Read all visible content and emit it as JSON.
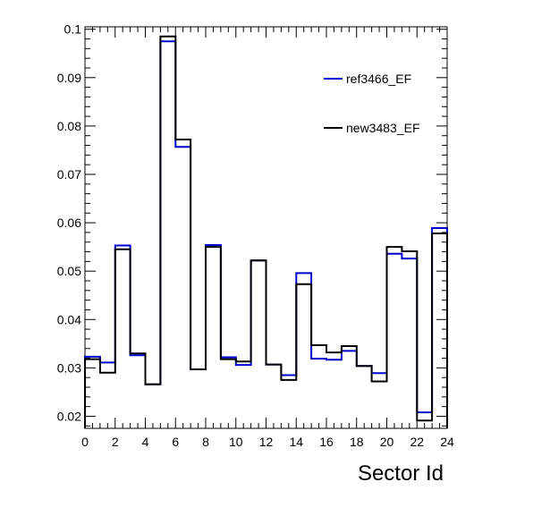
{
  "chart_data": {
    "type": "step-histogram",
    "title": "",
    "xlabel": "Sector Id",
    "ylabel": "",
    "xlim": [
      0,
      24
    ],
    "ylim": [
      0.0175,
      0.1005
    ],
    "grid": false,
    "legend_position": "top-right",
    "x_ticks": [
      0,
      2,
      4,
      6,
      8,
      10,
      12,
      14,
      16,
      18,
      20,
      22,
      24
    ],
    "y_ticks": [
      0.02,
      0.03,
      0.04,
      0.05,
      0.06,
      0.07,
      0.08,
      0.09,
      0.1
    ],
    "y_tick_labels": [
      "0.02",
      "0.03",
      "0.04",
      "0.05",
      "0.06",
      "0.07",
      "0.08",
      "0.09",
      "0.1"
    ],
    "bin_edges": [
      0,
      1,
      2,
      3,
      4,
      5,
      6,
      7,
      8,
      9,
      10,
      11,
      12,
      13,
      14,
      15,
      16,
      17,
      18,
      19,
      20,
      21,
      22,
      23,
      24
    ],
    "series": [
      {
        "name": "ref3466_EF",
        "color": "#0000cc",
        "values": [
          0.0323,
          0.0311,
          0.0553,
          0.0326,
          0.0266,
          0.0975,
          0.0757,
          0.0297,
          0.0554,
          0.0322,
          0.0306,
          0.0522,
          0.0307,
          0.0285,
          0.0496,
          0.0319,
          0.0317,
          0.0335,
          0.0304,
          0.0289,
          0.0536,
          0.0526,
          0.0208,
          0.0589
        ]
      },
      {
        "name": "new3483_EF",
        "color": "#000000",
        "values": [
          0.0318,
          0.029,
          0.0545,
          0.033,
          0.0266,
          0.0985,
          0.0772,
          0.0297,
          0.055,
          0.0318,
          0.0313,
          0.0522,
          0.0307,
          0.0275,
          0.0473,
          0.0347,
          0.0332,
          0.0345,
          0.0304,
          0.0272,
          0.055,
          0.0541,
          0.0191,
          0.0578
        ]
      }
    ]
  }
}
